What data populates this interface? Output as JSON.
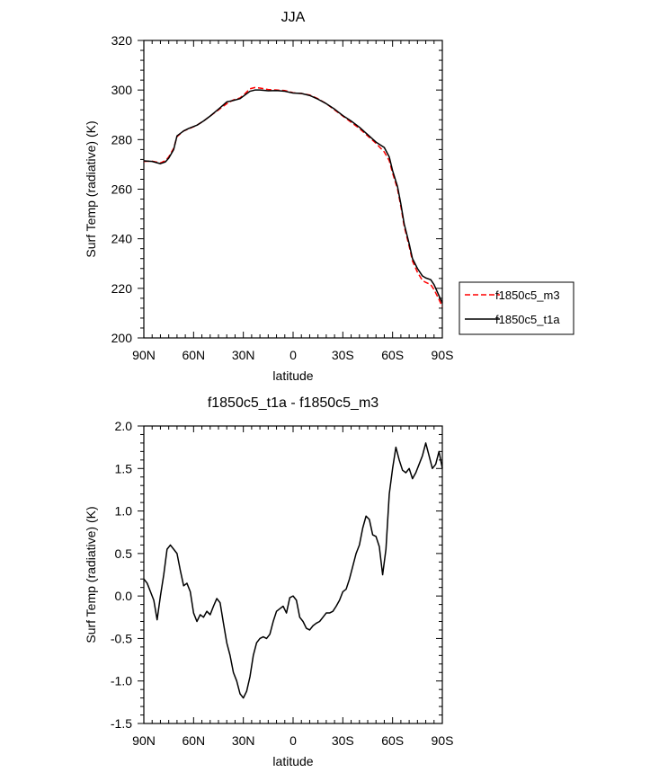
{
  "chart_data": [
    {
      "type": "line",
      "title": "JJA",
      "xlabel": "latitude",
      "ylabel": "Surf Temp (radiative) (K)",
      "xlim": [
        90,
        -90
      ],
      "ylim": [
        200,
        320
      ],
      "xticks": [
        90,
        60,
        30,
        0,
        -30,
        -60,
        -90
      ],
      "xtick_labels": [
        "90N",
        "60N",
        "30N",
        "0",
        "30S",
        "60S",
        "90S"
      ],
      "yticks": [
        200,
        220,
        240,
        260,
        280,
        300,
        320
      ],
      "ytick_labels": [
        "200",
        "220",
        "240",
        "260",
        "280",
        "300",
        "320"
      ],
      "grid": false,
      "legend": "right",
      "series": [
        {
          "name": "f1850c5_m3",
          "color": "#ff0000",
          "dash": "dashed",
          "x": [
            90,
            85,
            80,
            77,
            75,
            72,
            70,
            66,
            63,
            58,
            54,
            50,
            45,
            40,
            36,
            32,
            29,
            26,
            23,
            20,
            15,
            10,
            5,
            0,
            -5,
            -10,
            -15,
            -20,
            -25,
            -30,
            -35,
            -40,
            -45,
            -50,
            -55,
            -58,
            -60,
            -63,
            -65,
            -67,
            -70,
            -72,
            -75,
            -78,
            -80,
            -83,
            -85,
            -88,
            -90
          ],
          "y": [
            271.2,
            271.3,
            270.6,
            271.5,
            273.0,
            276.5,
            281.2,
            283.5,
            284.3,
            285.8,
            287.5,
            289.5,
            292.0,
            294.5,
            296.0,
            296.8,
            298.5,
            300.5,
            301.0,
            300.8,
            300.2,
            300.0,
            299.8,
            298.9,
            298.6,
            298.0,
            296.5,
            294.5,
            292.0,
            289.5,
            287.0,
            284.5,
            281.5,
            278.5,
            275.0,
            271.5,
            266.5,
            260.0,
            253.0,
            245.0,
            237.0,
            231.0,
            226.5,
            223.2,
            222.4,
            221.5,
            219.5,
            215.5,
            212.6
          ]
        },
        {
          "name": "f1850c5_t1a",
          "color": "#000000",
          "dash": "solid",
          "x": [
            90,
            85,
            80,
            77,
            75,
            72,
            70,
            66,
            63,
            58,
            54,
            50,
            45,
            40,
            36,
            32,
            29,
            26,
            23,
            20,
            15,
            10,
            5,
            0,
            -5,
            -10,
            -15,
            -20,
            -25,
            -30,
            -35,
            -40,
            -45,
            -50,
            -55,
            -58,
            -60,
            -63,
            -65,
            -67,
            -70,
            -72,
            -75,
            -78,
            -80,
            -83,
            -85,
            -88,
            -90
          ],
          "y": [
            271.4,
            271.2,
            270.3,
            271.0,
            272.5,
            276.0,
            281.5,
            283.5,
            284.5,
            285.8,
            287.5,
            289.5,
            292.3,
            295.2,
            295.8,
            296.5,
            298.0,
            299.5,
            300.0,
            300.0,
            299.7,
            299.8,
            299.5,
            298.8,
            298.6,
            297.8,
            296.3,
            294.5,
            292.3,
            289.7,
            287.5,
            285.0,
            282.0,
            279.0,
            276.8,
            273.0,
            267.5,
            261.0,
            254.0,
            246.0,
            238.0,
            232.0,
            228.0,
            225.0,
            224.2,
            223.5,
            221.5,
            217.0,
            214.0
          ]
        }
      ]
    },
    {
      "type": "line",
      "title": "f1850c5_t1a - f1850c5_m3",
      "xlabel": "latitude",
      "ylabel": "Surf Temp (radiative) (K)",
      "xlim": [
        90,
        -90
      ],
      "ylim": [
        -1.5,
        2.0
      ],
      "xticks": [
        90,
        60,
        30,
        0,
        -30,
        -60,
        -90
      ],
      "xtick_labels": [
        "90N",
        "60N",
        "30N",
        "0",
        "30S",
        "60S",
        "90S"
      ],
      "yticks": [
        -1.5,
        -1.0,
        -0.5,
        0.0,
        0.5,
        1.0,
        1.5,
        2.0
      ],
      "ytick_labels": [
        "-1.5",
        "-1.0",
        "-0.5",
        "0.0",
        "0.5",
        "1.0",
        "1.5",
        "2.0"
      ],
      "grid": false,
      "series": [
        {
          "color": "#000000",
          "dash": "solid",
          "x": [
            90,
            88,
            86,
            84,
            82,
            80,
            78,
            76,
            74,
            72,
            70,
            68,
            66,
            64,
            62,
            60,
            58,
            56,
            54,
            52,
            50,
            48,
            46,
            44,
            42,
            40,
            38,
            36,
            34,
            32,
            30,
            28,
            26,
            24,
            22,
            20,
            18,
            16,
            14,
            12,
            10,
            8,
            6,
            4,
            2,
            0,
            -2,
            -4,
            -6,
            -8,
            -10,
            -12,
            -14,
            -16,
            -18,
            -20,
            -22,
            -24,
            -26,
            -28,
            -30,
            -32,
            -34,
            -36,
            -38,
            -40,
            -42,
            -44,
            -46,
            -48,
            -50,
            -52,
            -54,
            -56,
            -58,
            -60,
            -62,
            -64,
            -66,
            -68,
            -70,
            -72,
            -74,
            -76,
            -78,
            -80,
            -82,
            -84,
            -86,
            -88,
            -90
          ],
          "y": [
            0.2,
            0.15,
            0.05,
            -0.05,
            -0.28,
            0.0,
            0.25,
            0.55,
            0.6,
            0.55,
            0.5,
            0.3,
            0.12,
            0.15,
            0.05,
            -0.2,
            -0.3,
            -0.22,
            -0.25,
            -0.18,
            -0.22,
            -0.12,
            -0.03,
            -0.08,
            -0.32,
            -0.55,
            -0.7,
            -0.9,
            -1.0,
            -1.15,
            -1.2,
            -1.12,
            -0.95,
            -0.7,
            -0.55,
            -0.5,
            -0.48,
            -0.5,
            -0.45,
            -0.3,
            -0.18,
            -0.15,
            -0.12,
            -0.2,
            -0.02,
            0.0,
            -0.05,
            -0.25,
            -0.3,
            -0.38,
            -0.4,
            -0.35,
            -0.32,
            -0.3,
            -0.25,
            -0.2,
            -0.2,
            -0.18,
            -0.12,
            -0.05,
            0.05,
            0.08,
            0.2,
            0.35,
            0.5,
            0.6,
            0.8,
            0.94,
            0.9,
            0.72,
            0.7,
            0.58,
            0.25,
            0.55,
            1.2,
            1.5,
            1.75,
            1.6,
            1.48,
            1.45,
            1.5,
            1.38,
            1.45,
            1.55,
            1.65,
            1.8,
            1.65,
            1.5,
            1.55,
            1.7,
            1.5
          ]
        }
      ]
    }
  ]
}
